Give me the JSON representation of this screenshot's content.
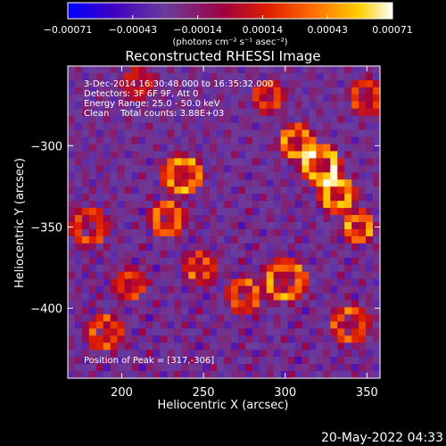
{
  "chart_data": {
    "type": "heatmap",
    "title": "Reconstructed RHESSI Image",
    "xlabel": "Heliocentric X (arcsec)",
    "ylabel": "Heliocentric Y (arcsec)",
    "xlim": [
      167,
      358
    ],
    "ylim": [
      -443,
      -251
    ],
    "x_ticks": [
      200,
      250,
      300,
      350
    ],
    "y_ticks": [
      -300,
      -350,
      -400
    ],
    "colorbar": {
      "min": -0.00071,
      "max": 0.00071,
      "ticks": [
        "-0.00071",
        "-0.00043",
        "-0.00014",
        "0.00014",
        "0.00043",
        "0.00071"
      ],
      "units": "(photons cm⁻² s⁻¹ asec⁻²)",
      "colormap": [
        "#0000ff",
        "#4000c0",
        "#6a3c9c",
        "#a00040",
        "#e02000",
        "#ff7000",
        "#ffd000",
        "#ffffff"
      ]
    },
    "annotations": [
      "3-Dec-2014 16:30:48.000 to 16:35:32.000",
      "Detectors: 3F 6F 9F, Att 0",
      "Energy Range: 25.0 - 50.0 keV",
      "Clean    Total counts: 3.88E+03"
    ],
    "peak_label": "Position of Peak = [317,-306]",
    "peak": [
      317,
      -306
    ],
    "grid": false
  },
  "footer": {
    "date": "20-May-2022 04:33"
  }
}
